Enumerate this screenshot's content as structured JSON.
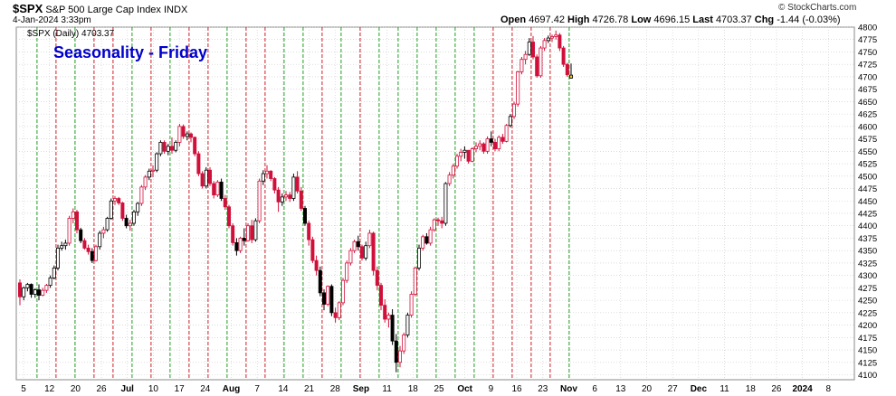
{
  "header": {
    "symbol": "$SPX",
    "name": "S&P 500 Large Cap Index",
    "exchange": "INDX",
    "date_time": "4-Jan-2024 3:33pm",
    "open_label": "Open",
    "open": "4697.42",
    "high_label": "High",
    "high": "4726.78",
    "low_label": "Low",
    "low": "4696.15",
    "last_label": "Last",
    "last": "4703.37",
    "chg_label": "Chg",
    "chg": "-1.44 (-0.03%)",
    "legend": "$SPX (Daily) 4703.37",
    "watermark": "© StockCharts.com"
  },
  "chart_data": {
    "type": "candlestick",
    "title": "Seasonality - Friday",
    "ylim": [
      4090,
      4800
    ],
    "y_ticks": [
      4100,
      4125,
      4150,
      4175,
      4200,
      4225,
      4250,
      4275,
      4300,
      4325,
      4350,
      4375,
      4400,
      4425,
      4450,
      4475,
      4500,
      4525,
      4550,
      4575,
      4600,
      4625,
      4650,
      4675,
      4700,
      4725,
      4750,
      4775,
      4800
    ],
    "x_ticks": [
      "5",
      "12",
      "20",
      "26",
      "Jul",
      "10",
      "17",
      "24",
      "Aug",
      "7",
      "14",
      "21",
      "28",
      "Sep",
      "11",
      "18",
      "25",
      "Oct",
      "9",
      "16",
      "23",
      "Nov",
      "6",
      "13",
      "20",
      "27",
      "Dec",
      "11",
      "18",
      "26",
      "2024",
      "8"
    ],
    "bold_x_ticks": [
      "Jul",
      "Aug",
      "Sep",
      "Oct",
      "Nov",
      "Dec",
      "2024"
    ],
    "colors": {
      "up": "#000000",
      "down": "#d0103a",
      "green_line": "#22a022",
      "red_line": "#d0202a",
      "grid": "#c8c8c8",
      "title": "#0000cc",
      "highlight": "#f5d020"
    },
    "ohlc": [
      [
        4285,
        4292,
        4240,
        4257
      ],
      [
        4257,
        4278,
        4250,
        4275
      ],
      [
        4275,
        4285,
        4268,
        4282
      ],
      [
        4282,
        4284,
        4255,
        4262
      ],
      [
        4262,
        4274,
        4255,
        4271
      ],
      [
        4271,
        4282,
        4250,
        4260
      ],
      [
        4260,
        4275,
        4258,
        4270
      ],
      [
        4270,
        4283,
        4265,
        4280
      ],
      [
        4280,
        4300,
        4275,
        4295
      ],
      [
        4295,
        4320,
        4292,
        4315
      ],
      [
        4315,
        4362,
        4310,
        4355
      ],
      [
        4355,
        4368,
        4350,
        4360
      ],
      [
        4360,
        4372,
        4352,
        4365
      ],
      [
        4365,
        4420,
        4360,
        4415
      ],
      [
        4415,
        4435,
        4405,
        4428
      ],
      [
        4428,
        4432,
        4385,
        4392
      ],
      [
        4392,
        4396,
        4365,
        4370
      ],
      [
        4370,
        4375,
        4352,
        4355
      ],
      [
        4355,
        4362,
        4342,
        4348
      ],
      [
        4348,
        4355,
        4325,
        4330
      ],
      [
        4330,
        4362,
        4328,
        4358
      ],
      [
        4358,
        4390,
        4352,
        4385
      ],
      [
        4385,
        4398,
        4375,
        4392
      ],
      [
        4392,
        4418,
        4388,
        4415
      ],
      [
        4415,
        4455,
        4412,
        4450
      ],
      [
        4450,
        4460,
        4442,
        4455
      ],
      [
        4455,
        4458,
        4442,
        4446
      ],
      [
        4446,
        4448,
        4410,
        4415
      ],
      [
        4415,
        4422,
        4395,
        4400
      ],
      [
        4400,
        4412,
        4390,
        4405
      ],
      [
        4405,
        4432,
        4400,
        4428
      ],
      [
        4428,
        4448,
        4420,
        4445
      ],
      [
        4445,
        4482,
        4440,
        4478
      ],
      [
        4478,
        4502,
        4472,
        4498
      ],
      [
        4498,
        4515,
        4492,
        4510
      ],
      [
        4510,
        4522,
        4498,
        4512
      ],
      [
        4512,
        4548,
        4508,
        4545
      ],
      [
        4545,
        4572,
        4540,
        4568
      ],
      [
        4568,
        4572,
        4545,
        4550
      ],
      [
        4550,
        4565,
        4542,
        4560
      ],
      [
        4560,
        4578,
        4545,
        4552
      ],
      [
        4552,
        4572,
        4548,
        4568
      ],
      [
        4568,
        4605,
        4560,
        4600
      ],
      [
        4600,
        4604,
        4575,
        4580
      ],
      [
        4580,
        4590,
        4572,
        4585
      ],
      [
        4585,
        4588,
        4568,
        4578
      ],
      [
        4578,
        4580,
        4540,
        4545
      ],
      [
        4545,
        4550,
        4500,
        4505
      ],
      [
        4505,
        4510,
        4475,
        4480
      ],
      [
        4480,
        4518,
        4475,
        4512
      ],
      [
        4512,
        4518,
        4480,
        4485
      ],
      [
        4485,
        4490,
        4455,
        4462
      ],
      [
        4462,
        4492,
        4458,
        4488
      ],
      [
        4488,
        4495,
        4450,
        4455
      ],
      [
        4455,
        4462,
        4432,
        4438
      ],
      [
        4438,
        4442,
        4395,
        4400
      ],
      [
        4400,
        4405,
        4360,
        4366
      ],
      [
        4366,
        4375,
        4340,
        4350
      ],
      [
        4350,
        4378,
        4345,
        4375
      ],
      [
        4375,
        4395,
        4360,
        4370
      ],
      [
        4370,
        4405,
        4368,
        4400
      ],
      [
        4400,
        4412,
        4365,
        4372
      ],
      [
        4372,
        4415,
        4368,
        4410
      ],
      [
        4410,
        4495,
        4405,
        4490
      ],
      [
        4490,
        4512,
        4482,
        4505
      ],
      [
        4505,
        4522,
        4495,
        4510
      ],
      [
        4510,
        4512,
        4490,
        4495
      ],
      [
        4495,
        4498,
        4465,
        4472
      ],
      [
        4472,
        4478,
        4428,
        4448
      ],
      [
        4448,
        4465,
        4440,
        4458
      ],
      [
        4458,
        4470,
        4450,
        4462
      ],
      [
        4462,
        4468,
        4448,
        4455
      ],
      [
        4455,
        4505,
        4450,
        4498
      ],
      [
        4498,
        4510,
        4465,
        4470
      ],
      [
        4470,
        4478,
        4430,
        4435
      ],
      [
        4435,
        4440,
        4400,
        4405
      ],
      [
        4405,
        4410,
        4360,
        4372
      ],
      [
        4372,
        4378,
        4325,
        4330
      ],
      [
        4330,
        4340,
        4300,
        4310
      ],
      [
        4310,
        4318,
        4258,
        4265
      ],
      [
        4265,
        4272,
        4230,
        4242
      ],
      [
        4242,
        4280,
        4238,
        4278
      ],
      [
        4278,
        4282,
        4218,
        4225
      ],
      [
        4225,
        4235,
        4205,
        4215
      ],
      [
        4215,
        4248,
        4210,
        4245
      ],
      [
        4245,
        4295,
        4240,
        4290
      ],
      [
        4290,
        4330,
        4285,
        4325
      ],
      [
        4325,
        4355,
        4320,
        4350
      ],
      [
        4350,
        4372,
        4345,
        4368
      ],
      [
        4368,
        4380,
        4350,
        4358
      ],
      [
        4358,
        4362,
        4330,
        4335
      ],
      [
        4335,
        4368,
        4330,
        4360
      ],
      [
        4360,
        4392,
        4355,
        4385
      ],
      [
        4385,
        4388,
        4300,
        4310
      ],
      [
        4310,
        4318,
        4270,
        4280
      ],
      [
        4280,
        4285,
        4230,
        4240
      ],
      [
        4240,
        4252,
        4205,
        4212
      ],
      [
        4212,
        4225,
        4195,
        4220
      ],
      [
        4220,
        4232,
        4160,
        4168
      ],
      [
        4168,
        4182,
        4105,
        4125
      ],
      [
        4125,
        4158,
        4115,
        4148
      ],
      [
        4148,
        4185,
        4142,
        4180
      ],
      [
        4180,
        4225,
        4175,
        4220
      ],
      [
        4220,
        4268,
        4215,
        4262
      ],
      [
        4262,
        4318,
        4258,
        4315
      ],
      [
        4315,
        4362,
        4310,
        4355
      ],
      [
        4355,
        4382,
        4350,
        4378
      ],
      [
        4378,
        4385,
        4362,
        4365
      ],
      [
        4365,
        4398,
        4360,
        4392
      ],
      [
        4392,
        4415,
        4388,
        4412
      ],
      [
        4412,
        4416,
        4400,
        4410
      ],
      [
        4410,
        4418,
        4395,
        4405
      ],
      [
        4405,
        4488,
        4400,
        4485
      ],
      [
        4485,
        4508,
        4480,
        4502
      ],
      [
        4502,
        4525,
        4495,
        4520
      ],
      [
        4520,
        4545,
        4515,
        4540
      ],
      [
        4540,
        4555,
        4530,
        4548
      ],
      [
        4548,
        4560,
        4535,
        4552
      ],
      [
        4552,
        4552,
        4525,
        4530
      ],
      [
        4530,
        4558,
        4528,
        4555
      ],
      [
        4555,
        4568,
        4548,
        4560
      ],
      [
        4560,
        4572,
        4552,
        4565
      ],
      [
        4565,
        4568,
        4545,
        4550
      ],
      [
        4550,
        4580,
        4545,
        4575
      ],
      [
        4575,
        4590,
        4560,
        4568
      ],
      [
        4568,
        4575,
        4550,
        4555
      ],
      [
        4555,
        4582,
        4550,
        4578
      ],
      [
        4578,
        4585,
        4565,
        4570
      ],
      [
        4570,
        4605,
        4568,
        4602
      ],
      [
        4602,
        4625,
        4598,
        4620
      ],
      [
        4620,
        4650,
        4615,
        4645
      ],
      [
        4645,
        4712,
        4640,
        4710
      ],
      [
        4710,
        4740,
        4705,
        4735
      ],
      [
        4735,
        4752,
        4725,
        4745
      ],
      [
        4745,
        4778,
        4742,
        4770
      ],
      [
        4770,
        4782,
        4735,
        4740
      ],
      [
        4740,
        4745,
        4698,
        4702
      ],
      [
        4702,
        4762,
        4698,
        4758
      ],
      [
        4758,
        4778,
        4752,
        4773
      ],
      [
        4773,
        4783,
        4768,
        4778
      ],
      [
        4778,
        4785,
        4770,
        4781
      ],
      [
        4781,
        4793,
        4775,
        4784
      ],
      [
        4784,
        4788,
        4752,
        4758
      ],
      [
        4758,
        4762,
        4720,
        4725
      ],
      [
        4725,
        4728,
        4700,
        4704
      ],
      [
        4697.42,
        4726.78,
        4696.15,
        4703.37
      ]
    ],
    "down_days": [
      3,
      5,
      9,
      11,
      12,
      16,
      19,
      21,
      24,
      28,
      30,
      34,
      36,
      37,
      41,
      44,
      49,
      53,
      57,
      59,
      64,
      72,
      75,
      79,
      80,
      89,
      91,
      98,
      102,
      107,
      112,
      117,
      124,
      129,
      134,
      139
    ],
    "red_days": [
      0,
      6,
      7,
      13,
      14,
      15,
      17,
      18,
      20,
      22,
      25,
      26,
      27,
      29,
      32,
      33,
      35,
      38,
      40,
      42,
      43,
      45,
      46,
      47,
      48,
      50,
      51,
      52,
      54,
      55,
      56,
      58,
      60,
      61,
      63,
      65,
      66,
      67,
      68,
      70,
      71,
      73,
      74,
      76,
      77,
      78,
      81,
      83,
      84,
      85,
      86,
      87,
      88,
      90,
      92,
      93,
      94,
      95,
      96,
      97,
      100,
      101,
      103,
      104,
      106,
      108,
      109,
      110,
      111,
      113,
      114,
      115,
      116,
      118,
      119,
      120,
      121,
      122,
      123,
      125,
      126,
      127,
      128,
      130,
      131,
      132,
      133,
      135,
      136,
      137,
      138,
      140,
      141,
      142,
      143,
      144
    ]
  }
}
